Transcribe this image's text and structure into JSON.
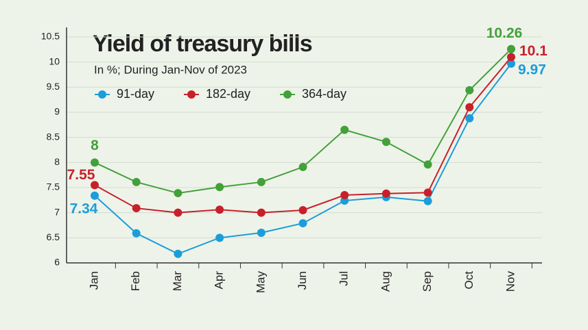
{
  "chart_data": {
    "type": "line",
    "title": "Yield of treasury bills",
    "subtitle": "In %; During Jan-Nov of 2023",
    "categories": [
      "Jan",
      "Feb",
      "Mar",
      "Apr",
      "May",
      "Jun",
      "Jul",
      "Aug",
      "Sep",
      "Oct",
      "Nov"
    ],
    "series": [
      {
        "name": "91-day",
        "color": "#1b9dd9",
        "values": [
          7.34,
          6.59,
          6.18,
          6.5,
          6.6,
          6.79,
          7.24,
          7.31,
          7.23,
          8.88,
          9.97
        ],
        "labels_at": [
          0,
          10
        ]
      },
      {
        "name": "182-day",
        "color": "#c8202a",
        "values": [
          7.55,
          7.09,
          7.0,
          7.06,
          7.0,
          7.05,
          7.35,
          7.38,
          7.4,
          9.1,
          10.1
        ],
        "labels_at": [
          0,
          10
        ]
      },
      {
        "name": "364-day",
        "color": "#43a03a",
        "values": [
          8,
          7.61,
          7.39,
          7.51,
          7.61,
          7.91,
          8.65,
          8.41,
          7.96,
          9.44,
          10.26
        ],
        "labels_at": [
          0,
          10
        ]
      }
    ],
    "ylim": [
      6,
      10.5
    ],
    "yticks": [
      6,
      6.5,
      7,
      7.5,
      8,
      8.5,
      9,
      9.5,
      10,
      10.5
    ],
    "grid": true
  }
}
